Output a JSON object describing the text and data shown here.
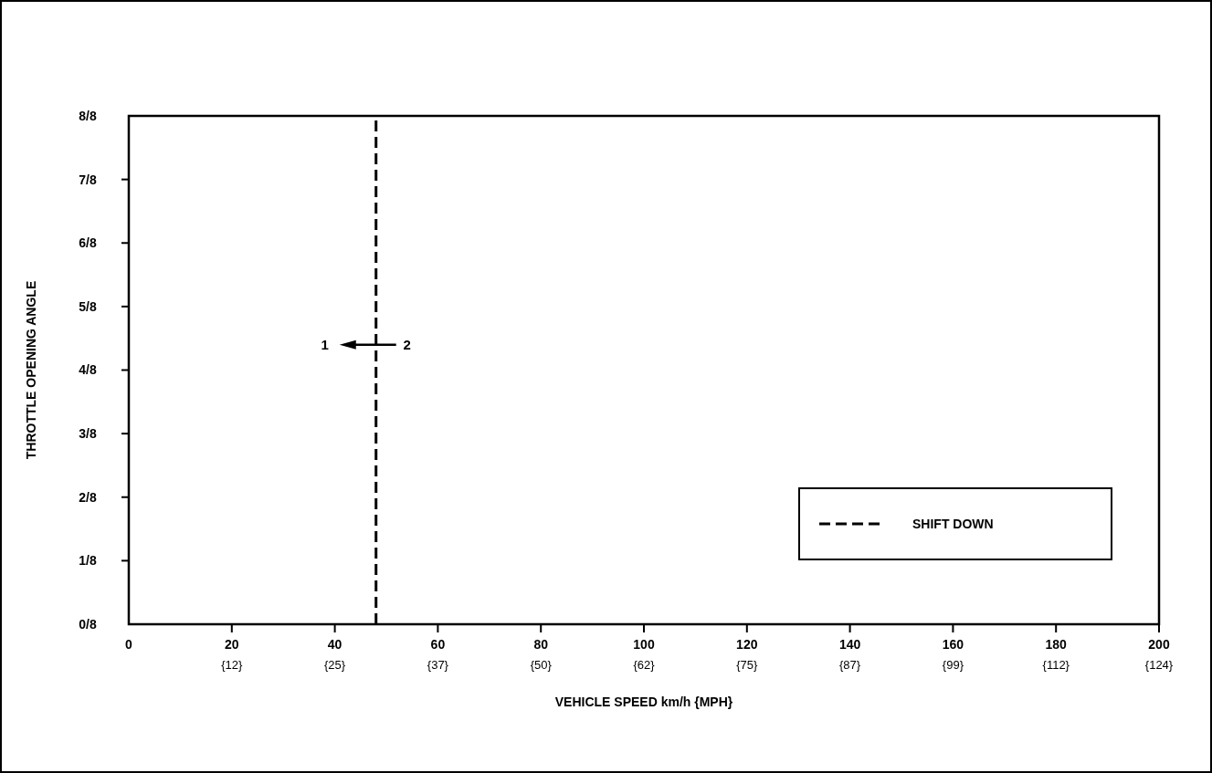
{
  "chart_data": {
    "type": "line",
    "xlabel": "VEHICLE SPEED km/h {MPH}",
    "ylabel": "THROTTLE OPENING ANGLE",
    "xlim": [
      0,
      200
    ],
    "xticks": [
      0,
      20,
      40,
      60,
      80,
      100,
      120,
      140,
      160,
      180,
      200
    ],
    "x2lim": [
      0,
      124.27
    ],
    "x2ticks": [
      {
        "value": 12.43,
        "label": "{12}"
      },
      {
        "value": 24.85,
        "label": "{25}"
      },
      {
        "value": 37.28,
        "label": "{37}"
      },
      {
        "value": 49.71,
        "label": "{50}"
      },
      {
        "value": 62.14,
        "label": "{62}"
      },
      {
        "value": 74.56,
        "label": "{75}"
      },
      {
        "value": 86.99,
        "label": "{87}"
      },
      {
        "value": 99.42,
        "label": "{99}"
      },
      {
        "value": 111.85,
        "label": "{112}"
      },
      {
        "value": 124.27,
        "label": "{124}"
      }
    ],
    "ylim": [
      0,
      1
    ],
    "yticks": [
      {
        "value": 0,
        "label": "0/8"
      },
      {
        "value": 0.125,
        "label": "1/8"
      },
      {
        "value": 0.25,
        "label": "2/8"
      },
      {
        "value": 0.375,
        "label": "3/8"
      },
      {
        "value": 0.5,
        "label": "4/8"
      },
      {
        "value": 0.625,
        "label": "5/8"
      },
      {
        "value": 0.75,
        "label": "6/8"
      },
      {
        "value": 0.875,
        "label": "7/8"
      },
      {
        "value": 1,
        "label": "8/8"
      }
    ],
    "series": [
      {
        "name": "SHIFT DOWN",
        "color": "#000000",
        "x": [
          48,
          48
        ],
        "values": [
          0,
          1
        ],
        "line_style": "dashed"
      }
    ],
    "annotations": [
      "1",
      "2"
    ],
    "legend": "bottom right",
    "grid": false
  }
}
